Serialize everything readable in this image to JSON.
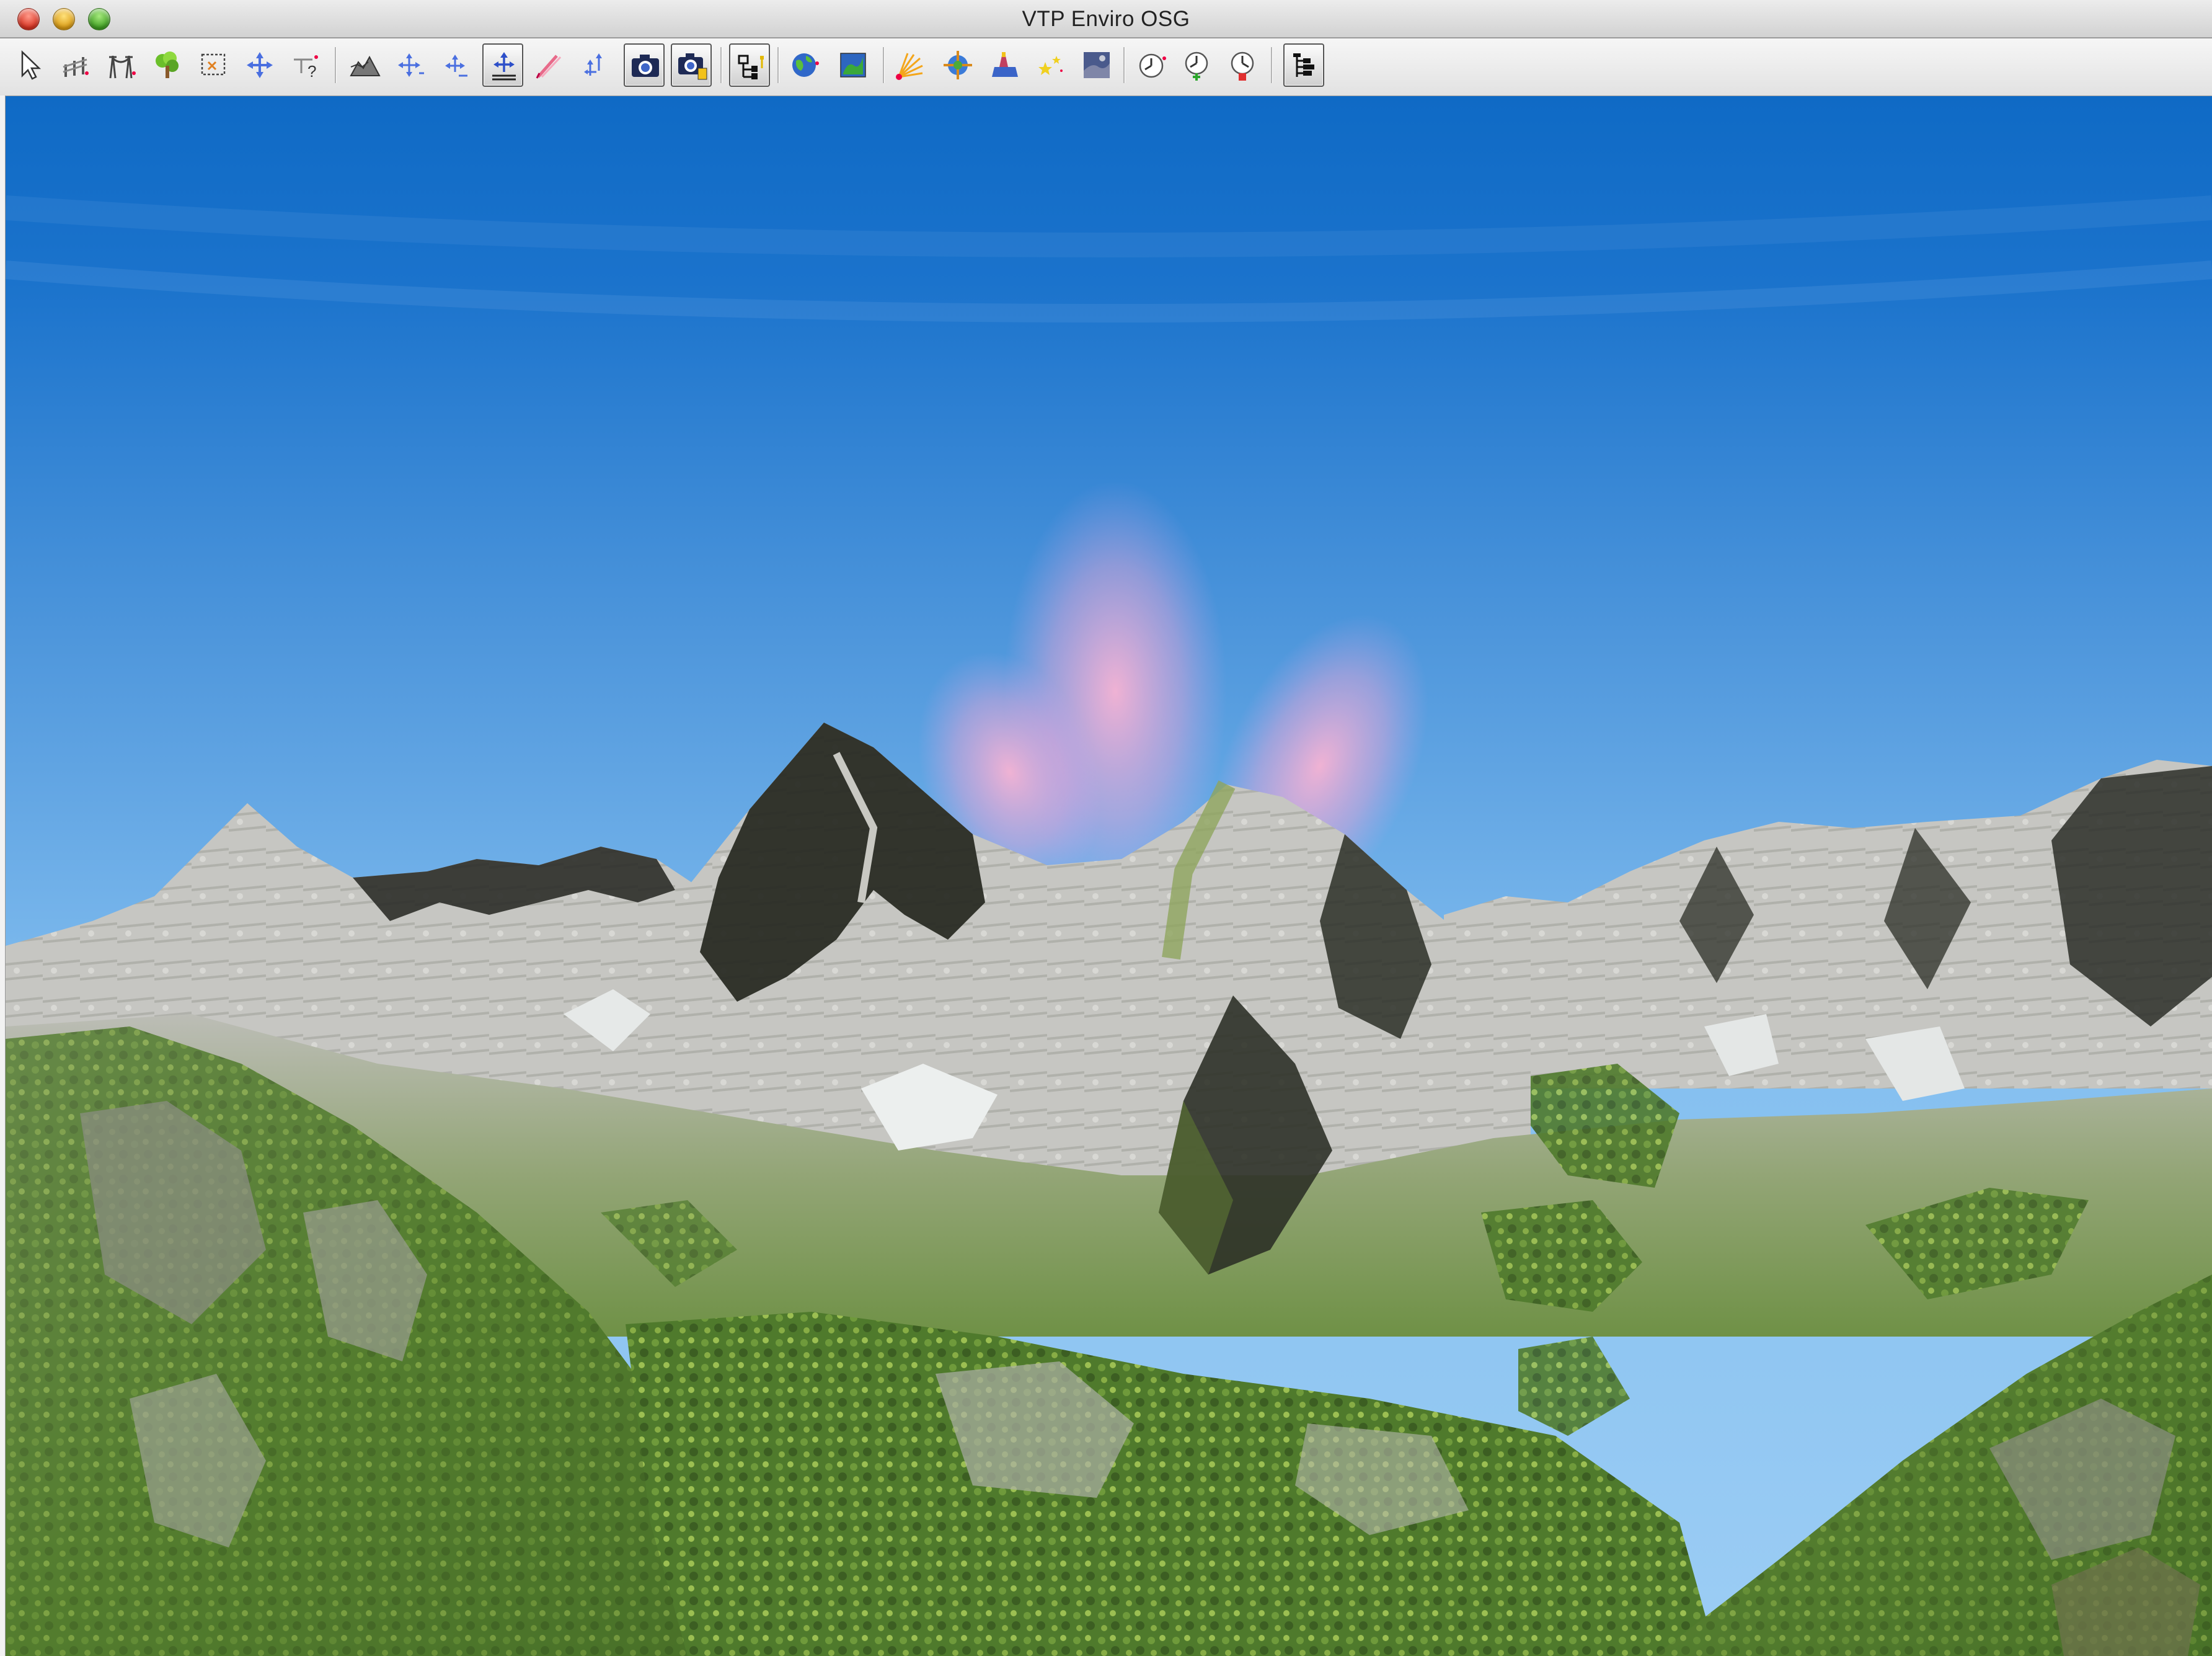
{
  "window": {
    "title": "VTP Enviro OSG"
  },
  "toolbar": {
    "buttons": [
      {
        "name": "select-tool-button",
        "icon": "arrow-cursor-icon"
      },
      {
        "name": "fence-tool-button",
        "icon": "fence-icon"
      },
      {
        "name": "route-tool-button",
        "icon": "power-route-icon"
      },
      {
        "name": "plant-tool-button",
        "icon": "tree-icon"
      },
      {
        "name": "select-box-button",
        "icon": "select-box-icon"
      },
      {
        "name": "move-tool-button",
        "icon": "move-cross-icon"
      },
      {
        "name": "info-tool-button",
        "icon": "info-query-icon"
      },
      {
        "name": "terrain-flyer-button",
        "icon": "terrain-icon"
      },
      {
        "name": "nav-flyer-button",
        "icon": "navigate-icon"
      },
      {
        "name": "vtfly-button",
        "icon": "fly-icon"
      },
      {
        "name": "grab-pivot-button",
        "icon": "grab-pivot-icon",
        "active": true
      },
      {
        "name": "panorama-flyer-button",
        "icon": "panorama-icon"
      },
      {
        "name": "quake-nav-button",
        "icon": "quake-nav-icon"
      },
      {
        "name": "snapshot-button",
        "icon": "camera-icon",
        "active": true
      },
      {
        "name": "snapshot-numbered-button",
        "icon": "camera-numbered-icon",
        "active": true
      },
      {
        "name": "scene-graph-button",
        "icon": "scene-graph-icon",
        "active": true
      },
      {
        "name": "globe-button",
        "icon": "globe-icon"
      },
      {
        "name": "map-overview-button",
        "icon": "map-icon"
      },
      {
        "name": "lights-button",
        "icon": "sun-rays-icon"
      },
      {
        "name": "layers-button",
        "icon": "compass-icon"
      },
      {
        "name": "culture-button",
        "icon": "building-icon"
      },
      {
        "name": "stars-button",
        "icon": "stars-icon"
      },
      {
        "name": "sky-texture-button",
        "icon": "sky-image-icon"
      },
      {
        "name": "time-button",
        "icon": "clock-icon"
      },
      {
        "name": "time-faster-button",
        "icon": "clock-faster-icon"
      },
      {
        "name": "time-stop-button",
        "icon": "clock-stop-icon"
      },
      {
        "name": "tree-view-button",
        "icon": "tree-view-icon",
        "active": true
      }
    ]
  },
  "colors": {
    "sky_top": "#0f6ac5",
    "sky_horizon": "#84bff0",
    "snow_rock": "#c9c9c6",
    "shadow_rock": "#2a2c27",
    "vegetation": "#5d8a36",
    "sun_glow": "#f3b6d6"
  }
}
